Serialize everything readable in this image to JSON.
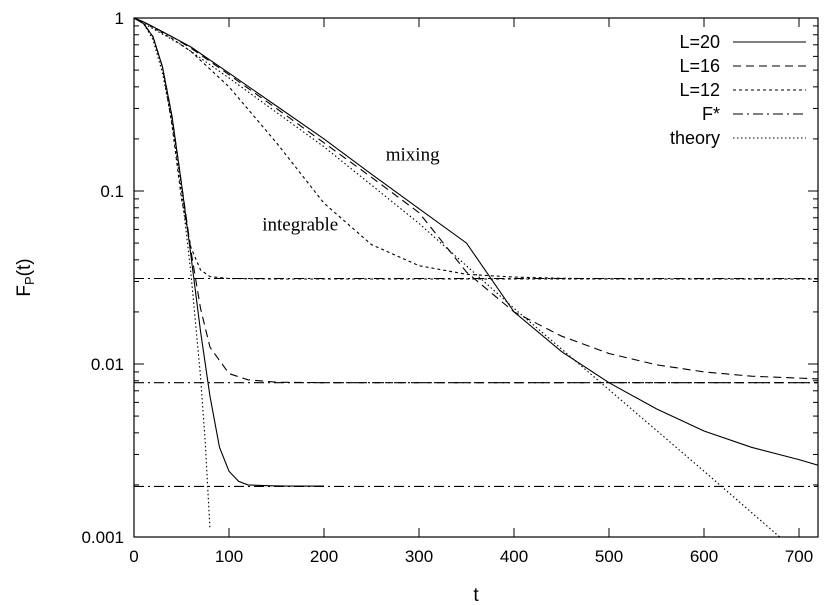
{
  "chart_data": {
    "type": "line",
    "xlabel": "t",
    "ylabel": "F",
    "ylabel_sub": "P",
    "ylabel_suffix": "(t)",
    "xlim": [
      0,
      720
    ],
    "ylim": [
      0.001,
      1
    ],
    "yscale": "log",
    "grid": false,
    "legend_position": "top-right",
    "x_ticks": [
      {
        "value": 0,
        "label": "0"
      },
      {
        "value": 100,
        "label": "100"
      },
      {
        "value": 200,
        "label": "200"
      },
      {
        "value": 300,
        "label": "300"
      },
      {
        "value": 400,
        "label": "400"
      },
      {
        "value": 500,
        "label": "500"
      },
      {
        "value": 600,
        "label": "600"
      },
      {
        "value": 700,
        "label": "700"
      }
    ],
    "y_ticks": [
      {
        "value": 1,
        "label": "1"
      },
      {
        "value": 0.1,
        "label": "0.1"
      },
      {
        "value": 0.01,
        "label": "0.01"
      },
      {
        "value": 0.001,
        "label": "0.001"
      }
    ],
    "series": [
      {
        "name": "L=20",
        "dash": "solid",
        "groups": [
          {
            "x": [
              0,
              10,
              20,
              30,
              40,
              50,
              60,
              70,
              80,
              90,
              100,
              110,
              120,
              140,
              160,
              200
            ],
            "y": [
              1,
              0.93,
              0.78,
              0.52,
              0.27,
              0.11,
              0.042,
              0.0155,
              0.0065,
              0.0033,
              0.0024,
              0.0021,
              0.002,
              0.00198,
              0.00197,
              0.00197
            ]
          },
          {
            "x": [
              0,
              10,
              20,
              40,
              60,
              100,
              150,
              200,
              250,
              300,
              350,
              400,
              450,
              500,
              550,
              600,
              650,
              700,
              720
            ],
            "y": [
              1,
              0.95,
              0.89,
              0.78,
              0.68,
              0.48,
              0.31,
              0.2,
              0.125,
              0.079,
              0.05,
              0.02,
              0.0118,
              0.0078,
              0.0055,
              0.0041,
              0.0033,
              0.0028,
              0.0026
            ]
          }
        ]
      },
      {
        "name": "L=16",
        "dash": "dashed",
        "groups": [
          {
            "x": [
              0,
              10,
              20,
              30,
              40,
              50,
              60,
              70,
              80,
              100,
              120,
              150,
              200,
              300,
              400,
              500,
              600,
              720
            ],
            "y": [
              1,
              0.93,
              0.78,
              0.52,
              0.27,
              0.11,
              0.045,
              0.021,
              0.0125,
              0.0088,
              0.0081,
              0.00785,
              0.0078,
              0.0078,
              0.0078,
              0.0078,
              0.0078,
              0.0078
            ]
          },
          {
            "x": [
              0,
              10,
              20,
              40,
              60,
              100,
              150,
              200,
              250,
              300,
              350,
              400,
              450,
              500,
              550,
              600,
              650,
              720
            ],
            "y": [
              1,
              0.95,
              0.89,
              0.78,
              0.67,
              0.47,
              0.3,
              0.19,
              0.12,
              0.075,
              0.034,
              0.02,
              0.0145,
              0.0115,
              0.0099,
              0.009,
              0.0085,
              0.0082
            ]
          }
        ]
      },
      {
        "name": "L=12",
        "dash": "dotted-short",
        "groups": [
          {
            "x": [
              0,
              10,
              20,
              30,
              40,
              50,
              60,
              70,
              80,
              100,
              150,
              200,
              300,
              400,
              500,
              600,
              720
            ],
            "y": [
              1,
              0.93,
              0.78,
              0.52,
              0.24,
              0.09,
              0.047,
              0.035,
              0.032,
              0.0312,
              0.031,
              0.031,
              0.031,
              0.031,
              0.031,
              0.031,
              0.031
            ]
          },
          {
            "x": [
              0,
              10,
              20,
              40,
              60,
              100,
              150,
              200,
              250,
              300,
              350,
              400,
              450,
              500,
              550,
              600,
              650,
              720
            ],
            "y": [
              1,
              0.95,
              0.88,
              0.76,
              0.64,
              0.4,
              0.19,
              0.085,
              0.049,
              0.037,
              0.033,
              0.0318,
              0.0313,
              0.0311,
              0.031,
              0.031,
              0.031,
              0.031
            ]
          }
        ]
      },
      {
        "name": "F*",
        "dash": "dash-dot",
        "groups": [
          {
            "x": [
              0,
              720
            ],
            "y": [
              0.0312,
              0.0312
            ]
          },
          {
            "x": [
              0,
              720
            ],
            "y": [
              0.0078,
              0.0078
            ]
          },
          {
            "x": [
              0,
              720
            ],
            "y": [
              0.00196,
              0.00196
            ]
          }
        ]
      },
      {
        "name": "theory",
        "dash": "dotted",
        "groups": [
          {
            "x": [
              0,
              10,
              20,
              30,
              40,
              50,
              60,
              70,
              75,
              80
            ],
            "y": [
              1,
              0.93,
              0.75,
              0.48,
              0.25,
              0.1,
              0.033,
              0.0085,
              0.0035,
              0.0011
            ]
          },
          {
            "x": [
              0,
              50,
              100,
              200,
              300,
              400,
              500,
              600,
              700
            ],
            "y": [
              1,
              0.7,
              0.45,
              0.18,
              0.065,
              0.021,
              0.0071,
              0.0024,
              0.0008
            ]
          }
        ]
      }
    ],
    "annotations": [
      {
        "text": "mixing",
        "x": 265,
        "y": 0.15
      },
      {
        "text": "integrable",
        "x": 135,
        "y": 0.059
      }
    ]
  }
}
